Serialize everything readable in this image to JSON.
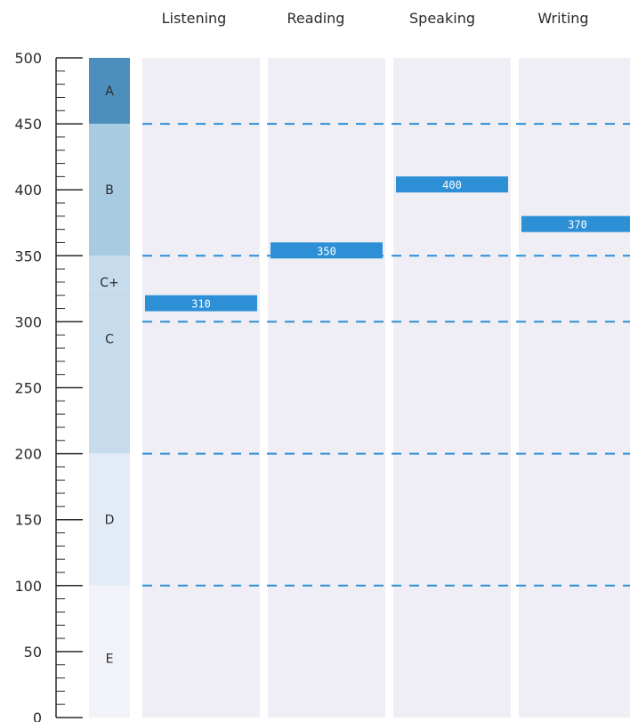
{
  "chart_data": {
    "type": "bar",
    "categories": [
      "Listening",
      "Reading",
      "Speaking",
      "Writing"
    ],
    "values": [
      310,
      350,
      400,
      370
    ],
    "value_labels": [
      "310",
      "350",
      "400",
      "370"
    ],
    "ylim": [
      0,
      500
    ],
    "y_ticks": [
      {
        "value": 0,
        "label": "0"
      },
      {
        "value": 50,
        "label": "50"
      },
      {
        "value": 100,
        "label": "100"
      },
      {
        "value": 150,
        "label": "150"
      },
      {
        "value": 200,
        "label": "200"
      },
      {
        "value": 250,
        "label": "250"
      },
      {
        "value": 300,
        "label": "300"
      },
      {
        "value": 350,
        "label": "350"
      },
      {
        "value": 400,
        "label": "400"
      },
      {
        "value": 450,
        "label": "450"
      },
      {
        "value": 500,
        "label": "500"
      }
    ],
    "minor_tick_step": 10,
    "grade_bands": [
      {
        "grade": "A",
        "from": 450,
        "to": 500,
        "label_at": 475,
        "color": "#4d8fbc"
      },
      {
        "grade": "B",
        "from": 350,
        "to": 450,
        "label_at": 400,
        "color": "#a9cbe2"
      },
      {
        "grade": "C+",
        "from": 325,
        "to": 350,
        "label_at": 330,
        "color": "#c6dced"
      },
      {
        "grade": "C",
        "from": 200,
        "to": 325,
        "label_at": 287,
        "color": "#c6dced"
      },
      {
        "grade": "D",
        "from": 100,
        "to": 200,
        "label_at": 150,
        "color": "#e3ecf6"
      },
      {
        "grade": "E",
        "from": 0,
        "to": 100,
        "label_at": 45,
        "color": "#f1f3f8"
      }
    ],
    "reference_lines": [
      450,
      350,
      300,
      200,
      100
    ],
    "colors": {
      "score_bar": "#2d8fd6",
      "reference_line": "#2d8fd6",
      "column_bg": "#eeeef4",
      "axis": "#2a2a2a"
    },
    "grid": false,
    "legend": "none"
  }
}
